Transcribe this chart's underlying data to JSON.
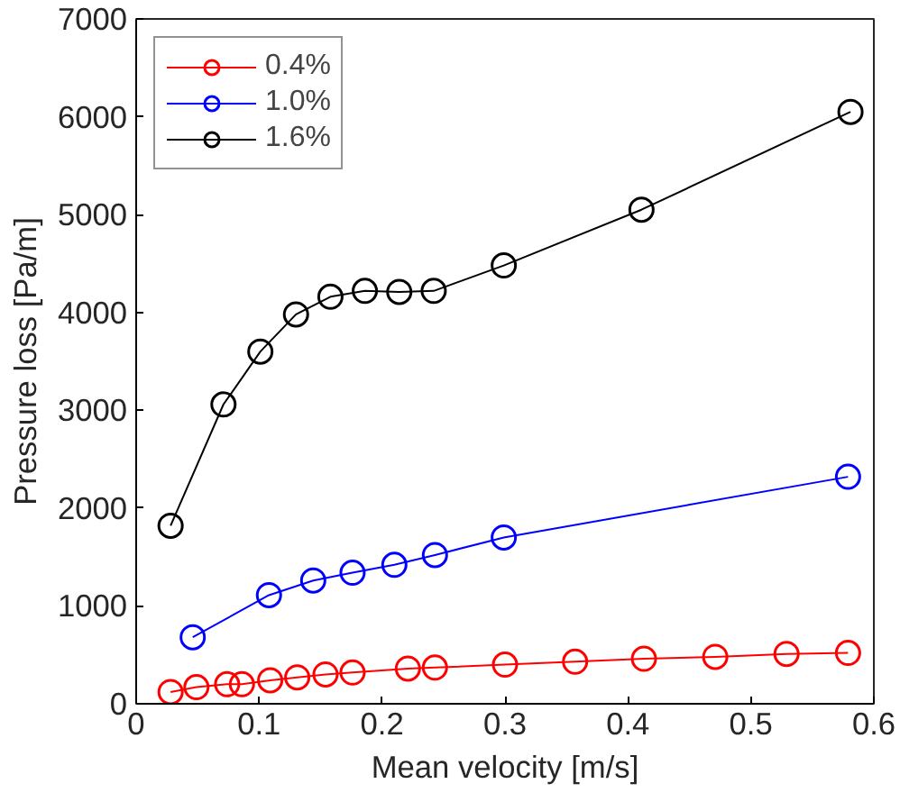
{
  "chart_data": {
    "type": "line",
    "xlabel": "Mean velocity [m/s]",
    "ylabel": "Pressure loss [Pa/m]",
    "xlim": [
      0,
      0.6
    ],
    "xticks": [
      0,
      0.1,
      0.2,
      0.3,
      0.4,
      0.5,
      0.6
    ],
    "ylim": [
      0,
      7000
    ],
    "yticks": [
      0,
      1000,
      2000,
      3000,
      4000,
      5000,
      6000,
      7000
    ],
    "grid": false,
    "legend": "top left",
    "marker": "circle",
    "line_style": "solid",
    "series": [
      {
        "name": "0.4%",
        "color": "#ff0000",
        "x": [
          0.028,
          0.049,
          0.074,
          0.086,
          0.109,
          0.131,
          0.154,
          0.176,
          0.221,
          0.243,
          0.3,
          0.357,
          0.413,
          0.471,
          0.529,
          0.579
        ],
        "values": [
          120,
          170,
          200,
          200,
          240,
          270,
          300,
          320,
          360,
          370,
          400,
          430,
          460,
          480,
          510,
          520
        ]
      },
      {
        "name": "1.0%",
        "color": "#0000ff",
        "x": [
          0.046,
          0.108,
          0.144,
          0.176,
          0.21,
          0.243,
          0.299,
          0.579
        ],
        "values": [
          680,
          1110,
          1260,
          1340,
          1420,
          1520,
          1700,
          2320
        ]
      },
      {
        "name": "1.6%",
        "color": "#000000",
        "x": [
          0.028,
          0.071,
          0.101,
          0.13,
          0.158,
          0.186,
          0.214,
          0.242,
          0.299,
          0.411,
          0.581
        ],
        "values": [
          1820,
          3060,
          3600,
          3980,
          4160,
          4220,
          4210,
          4220,
          4480,
          5050,
          6050
        ]
      }
    ]
  }
}
